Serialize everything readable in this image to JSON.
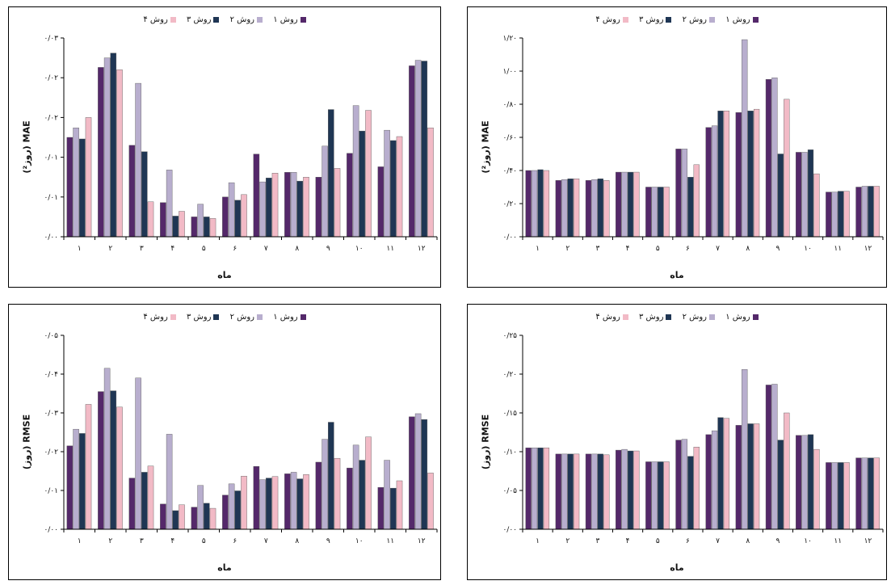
{
  "colors": {
    "m1": "#54286a",
    "m2": "#b8aece",
    "m3": "#1f3654",
    "m4": "#f2bac6"
  },
  "chart_data": [
    {
      "id": "tl",
      "type": "bar",
      "xlabel": "ماه",
      "ylabel": "(روز²) MAE",
      "ylim": [
        0,
        0.025
      ],
      "yticks": [
        "۰/۰۰",
        "۰/۰۱",
        "۰/۰۱",
        "۰/۰۲",
        "۰/۰۲",
        "۰/۰۳"
      ],
      "categories": [
        "۱",
        "۲",
        "۳",
        "۴",
        "۵",
        "۶",
        "۷",
        "۸",
        "۹",
        "۱۰",
        "۱۱",
        "۱۲"
      ],
      "series": [
        {
          "name": "روش ۱",
          "values": [
            0.0125,
            0.0213,
            0.0115,
            0.0043,
            0.0025,
            0.005,
            0.0104,
            0.0081,
            0.0075,
            0.0105,
            0.0088,
            0.0215
          ]
        },
        {
          "name": "روش ۲",
          "values": [
            0.0137,
            0.0225,
            0.0193,
            0.0084,
            0.0041,
            0.0068,
            0.0069,
            0.0081,
            0.0114,
            0.0165,
            0.0134,
            0.0222
          ]
        },
        {
          "name": "روش ۳",
          "values": [
            0.0123,
            0.0231,
            0.0107,
            0.0026,
            0.0025,
            0.0046,
            0.0074,
            0.007,
            0.016,
            0.0133,
            0.0121,
            0.0221
          ]
        },
        {
          "name": "روش ۴",
          "values": [
            0.015,
            0.021,
            0.0044,
            0.0032,
            0.0023,
            0.0053,
            0.008,
            0.0075,
            0.0086,
            0.0159,
            0.0126,
            0.0137
          ]
        }
      ]
    },
    {
      "id": "tr",
      "type": "bar",
      "xlabel": "ماه",
      "ylabel": "(روز²) MAE",
      "ylim": [
        0,
        1.2
      ],
      "yticks": [
        "۰/۰۰",
        "۰/۲۰",
        "۰/۴۰",
        "۰/۶۰",
        "۰/۸۰",
        "۱/۰۰",
        "۱/۲۰"
      ],
      "categories": [
        "۱",
        "۲",
        "۳",
        "۴",
        "۵",
        "۶",
        "۷",
        "۸",
        "۹",
        "۱۰",
        "۱۱",
        "۱۲"
      ],
      "series": [
        {
          "name": "روش ۱",
          "values": [
            0.4,
            0.34,
            0.34,
            0.39,
            0.3,
            0.53,
            0.66,
            0.75,
            0.95,
            0.51,
            0.27,
            0.3
          ]
        },
        {
          "name": "روش ۲",
          "values": [
            0.4,
            0.345,
            0.345,
            0.39,
            0.3,
            0.53,
            0.67,
            1.19,
            0.96,
            0.51,
            0.27,
            0.305
          ]
        },
        {
          "name": "روش ۳",
          "values": [
            0.405,
            0.35,
            0.35,
            0.39,
            0.3,
            0.36,
            0.76,
            0.76,
            0.5,
            0.525,
            0.275,
            0.305
          ]
        },
        {
          "name": "روش ۴",
          "values": [
            0.4,
            0.35,
            0.34,
            0.39,
            0.3,
            0.435,
            0.76,
            0.77,
            0.83,
            0.38,
            0.275,
            0.305
          ]
        }
      ]
    },
    {
      "id": "bl",
      "type": "bar",
      "xlabel": "ماه",
      "ylabel": "(روز) RMSE",
      "ylim": [
        0,
        0.05
      ],
      "yticks": [
        "۰/۰۰",
        "۰/۰۱",
        "۰/۰۲",
        "۰/۰۳",
        "۰/۰۴",
        "۰/۰۵"
      ],
      "categories": [
        "۱",
        "۲",
        "۳",
        "۴",
        "۵",
        "۶",
        "۷",
        "۸",
        "۹",
        "۱۰",
        "۱۱",
        "۱۲"
      ],
      "series": [
        {
          "name": "روش ۱",
          "values": [
            0.0215,
            0.0355,
            0.0132,
            0.0065,
            0.0057,
            0.0088,
            0.0162,
            0.0143,
            0.0173,
            0.0158,
            0.0108,
            0.029
          ]
        },
        {
          "name": "روش ۲",
          "values": [
            0.0258,
            0.0415,
            0.039,
            0.0245,
            0.0113,
            0.0117,
            0.0128,
            0.0147,
            0.0232,
            0.0217,
            0.0178,
            0.0298
          ]
        },
        {
          "name": "روش ۳",
          "values": [
            0.0247,
            0.0357,
            0.0147,
            0.0048,
            0.0067,
            0.0099,
            0.0132,
            0.013,
            0.0276,
            0.0178,
            0.0106,
            0.0283
          ]
        },
        {
          "name": "روش ۴",
          "values": [
            0.0322,
            0.0315,
            0.0163,
            0.0063,
            0.0054,
            0.0137,
            0.0136,
            0.0141,
            0.0183,
            0.0238,
            0.0125,
            0.0145
          ]
        }
      ]
    },
    {
      "id": "br",
      "type": "bar",
      "xlabel": "ماه",
      "ylabel": "(روز) RMSE",
      "ylim": [
        0,
        0.25
      ],
      "yticks": [
        "۰/۰۰",
        "۰/۰۵",
        "۰/۱۰",
        "۰/۱۵",
        "۰/۲۰",
        "۰/۲۵"
      ],
      "categories": [
        "۱",
        "۲",
        "۳",
        "۴",
        "۵",
        "۶",
        "۷",
        "۸",
        "۹",
        "۱۰",
        "۱۱",
        "۱۲"
      ],
      "series": [
        {
          "name": "روش ۱",
          "values": [
            0.105,
            0.097,
            0.097,
            0.102,
            0.087,
            0.115,
            0.122,
            0.134,
            0.186,
            0.121,
            0.086,
            0.092
          ]
        },
        {
          "name": "روش ۲",
          "values": [
            0.105,
            0.097,
            0.097,
            0.103,
            0.087,
            0.116,
            0.127,
            0.206,
            0.187,
            0.121,
            0.086,
            0.092
          ]
        },
        {
          "name": "روش ۳",
          "values": [
            0.105,
            0.097,
            0.097,
            0.101,
            0.087,
            0.094,
            0.144,
            0.136,
            0.115,
            0.122,
            0.086,
            0.092
          ]
        },
        {
          "name": "روش ۴",
          "values": [
            0.105,
            0.097,
            0.096,
            0.101,
            0.087,
            0.106,
            0.143,
            0.136,
            0.15,
            0.103,
            0.086,
            0.092
          ]
        }
      ]
    }
  ]
}
